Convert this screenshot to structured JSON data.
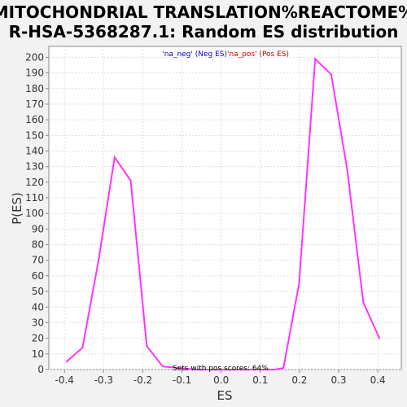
{
  "chart_data": {
    "type": "line",
    "title_lines": [
      "MITOCHONDRIAL TRANSLATION%REACTOME%",
      "R-HSA-5368287.1: Random ES distribution"
    ],
    "xlabel": "ES",
    "ylabel": "P(ES)",
    "xlim": [
      -0.44,
      0.46
    ],
    "ylim": [
      0,
      207
    ],
    "x_ticks": [
      -0.4,
      -0.3,
      -0.2,
      -0.1,
      0.0,
      0.1,
      0.2,
      0.3,
      0.4
    ],
    "x_tick_labels": [
      "-0.4",
      "-0.3",
      "-0.2",
      "-0.1",
      "0.0",
      "0.1",
      "0.2",
      "0.3",
      "0.4"
    ],
    "y_ticks": [
      0,
      10,
      20,
      30,
      40,
      50,
      60,
      70,
      80,
      90,
      100,
      110,
      120,
      130,
      140,
      150,
      160,
      170,
      180,
      190,
      200
    ],
    "y_tick_labels": [
      "0",
      "10",
      "20",
      "30",
      "40",
      "50",
      "60",
      "70",
      "80",
      "90",
      "100",
      "110",
      "120",
      "130",
      "140",
      "150",
      "160",
      "170",
      "180",
      "190",
      "200"
    ],
    "grid": true,
    "series": [
      {
        "color": "#ff33ff",
        "x": [
          -0.395,
          -0.354,
          -0.313,
          -0.272,
          -0.231,
          -0.19,
          -0.149,
          -0.108,
          -0.067,
          -0.026,
          0.015,
          0.056,
          0.097,
          0.138,
          0.159,
          0.199,
          0.24,
          0.281,
          0.322,
          0.363,
          0.404
        ],
        "y": [
          5,
          14,
          70,
          136,
          121,
          15,
          2,
          1,
          0,
          0,
          0,
          0,
          0,
          0,
          1,
          55,
          199,
          189,
          128,
          43,
          20
        ]
      }
    ],
    "legend": {
      "position": "top-center",
      "entries": [
        {
          "label": "'na_neg' (Neg ES)",
          "color": "#0000cc"
        },
        {
          "label": "'na_pos' (Pos ES)",
          "color": "#cc0000"
        }
      ]
    },
    "annotation": "Sets with pos scores: 64%"
  },
  "colors": {
    "background": "#f2f2f2",
    "plot_background": "#ffffff",
    "grid": "#dddddd",
    "axis": "#888888",
    "line": "#ff33ff"
  }
}
